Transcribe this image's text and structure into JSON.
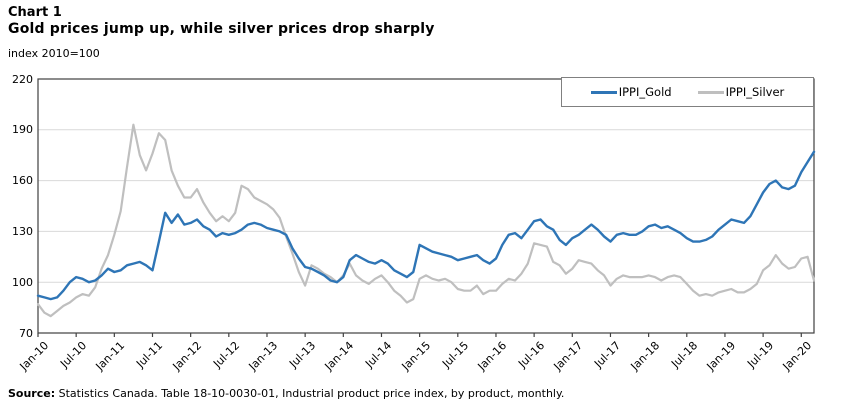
{
  "header": {
    "chart_label": "Chart 1",
    "title": "Gold prices jump up, while silver prices drop sharply",
    "unit_label": "index 2010=100"
  },
  "source": {
    "label": "Source:",
    "text": " Statistics Canada. Table 18-10-0030-01, Industrial product price index, by product, monthly."
  },
  "colors": {
    "gold_line": "#2E75B6",
    "silver_line": "#BFBFBF",
    "gridline": "#D9D9D9",
    "plot_border": "#404040",
    "legend_border": "#808080",
    "text": "#000000"
  },
  "chart_data": {
    "type": "line",
    "title": "Gold prices jump up, while silver prices drop sharply",
    "unit": "index 2010=100",
    "x_tick_labels": [
      "Jan-10",
      "Jul-10",
      "Jan-11",
      "Jul-11",
      "Jan-12",
      "Jul-12",
      "Jan-13",
      "Jul-13",
      "Jan-14",
      "Jul-14",
      "Jan-15",
      "Jul-15",
      "Jan-16",
      "Jul-16",
      "Jan-17",
      "Jul-17",
      "Jan-18",
      "Jul-18",
      "Jan-19",
      "Jul-19",
      "Jan-20"
    ],
    "x_tick_interval_points": 6,
    "x_frequency": "monthly",
    "y_ticks": [
      70,
      100,
      130,
      160,
      190,
      220
    ],
    "ylim": [
      70,
      220
    ],
    "grid": "horizontal",
    "legend_position": "top-right",
    "series": [
      {
        "name": "IPPI_Gold",
        "color": "#2E75B6",
        "values": [
          92,
          91,
          90,
          91,
          95,
          100,
          103,
          102,
          100,
          101,
          104,
          108,
          106,
          107,
          110,
          111,
          112,
          110,
          107,
          124,
          141,
          135,
          140,
          134,
          135,
          137,
          133,
          131,
          127,
          129,
          128,
          129,
          131,
          134,
          135,
          134,
          132,
          131,
          130,
          128,
          120,
          114,
          109,
          108,
          106,
          104,
          101,
          100,
          103,
          113,
          116,
          114,
          112,
          111,
          113,
          111,
          107,
          105,
          103,
          106,
          122,
          120,
          118,
          117,
          116,
          115,
          113,
          114,
          115,
          116,
          113,
          111,
          114,
          122,
          128,
          129,
          126,
          131,
          136,
          137,
          133,
          131,
          125,
          122,
          126,
          128,
          131,
          134,
          131,
          127,
          124,
          128,
          129,
          128,
          128,
          130,
          133,
          134,
          132,
          133,
          131,
          129,
          126,
          124,
          124,
          125,
          127,
          131,
          134,
          137,
          136,
          135,
          139,
          146,
          153,
          158,
          160,
          156,
          155,
          157,
          165,
          171,
          177
        ]
      },
      {
        "name": "IPPI_Silver",
        "color": "#BFBFBF",
        "values": [
          87,
          82,
          80,
          83,
          86,
          88,
          91,
          93,
          92,
          97,
          108,
          116,
          128,
          142,
          168,
          193,
          175,
          166,
          176,
          188,
          184,
          166,
          157,
          150,
          150,
          155,
          147,
          141,
          136,
          139,
          136,
          141,
          157,
          155,
          150,
          148,
          146,
          143,
          138,
          127,
          117,
          106,
          98,
          110,
          108,
          105,
          103,
          100,
          104,
          111,
          104,
          101,
          99,
          102,
          104,
          100,
          95,
          92,
          88,
          90,
          102,
          104,
          102,
          101,
          102,
          100,
          96,
          95,
          95,
          98,
          93,
          95,
          95,
          99,
          102,
          101,
          105,
          111,
          123,
          122,
          121,
          112,
          110,
          105,
          108,
          113,
          112,
          111,
          107,
          104,
          98,
          102,
          104,
          103,
          103,
          103,
          104,
          103,
          101,
          103,
          104,
          103,
          99,
          95,
          92,
          93,
          92,
          94,
          95,
          96,
          94,
          94,
          96,
          99,
          107,
          110,
          116,
          111,
          108,
          109,
          114,
          115,
          101
        ]
      }
    ]
  }
}
